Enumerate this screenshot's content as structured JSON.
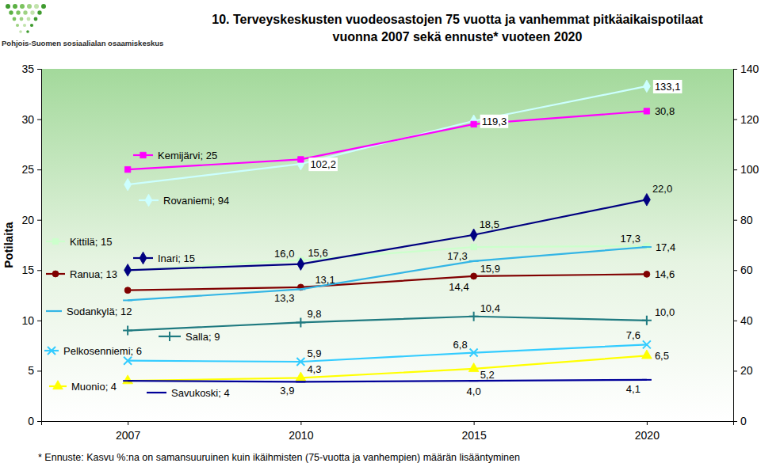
{
  "logo": {
    "text": "Pohjois-Suomen sosiaalialan osaamiskeskus"
  },
  "chart_data": {
    "type": "line",
    "title": "10. Terveyskeskusten vuodeosastojen 75 vuotta ja vanhemmat pitkäaikaispotilaat",
    "subtitle": "vuonna 2007 sekä ennuste* vuoteen 2020",
    "note": "* Ennuste: Kasvu %:na on samansuuruinen kuin ikäihmisten (75-vuotta ja vanhempien) määrän lisääntyminen",
    "ylabel": "Potilaita",
    "categories": [
      "2007",
      "2010",
      "2015",
      "2020"
    ],
    "ylim": [
      0,
      35
    ],
    "yticks": [
      0,
      5,
      10,
      15,
      20,
      25,
      30,
      35
    ],
    "y2lim": [
      0,
      140
    ],
    "y2ticks": [
      0,
      20,
      40,
      60,
      80,
      100,
      120,
      140
    ],
    "grid": false,
    "data_labels": true,
    "series": [
      {
        "name": "Rovaniemi",
        "color": "#ccffff",
        "marker": "diamond",
        "axis": "y2",
        "values": [
          94,
          102.2,
          119.3,
          133.1
        ],
        "value_labels": [
          "; 94",
          "102,2",
          "119,3",
          "133,1"
        ]
      },
      {
        "name": "Kemijärvi",
        "color": "#ff00ff",
        "marker": "square",
        "values": [
          25,
          26,
          29.5,
          30.8
        ],
        "value_labels": [
          "; 25",
          null,
          null,
          "30,8"
        ]
      },
      {
        "name": "Kittilä",
        "color": "#ccffcc",
        "marker": "square",
        "values": [
          15,
          16.0,
          17.3,
          17.4
        ],
        "value_labels": [
          "; 15",
          "16,0",
          "17,3",
          "17,4"
        ]
      },
      {
        "name": "Inari",
        "color": "#000080",
        "marker": "diamond",
        "values": [
          15,
          15.6,
          18.5,
          22.0
        ],
        "value_labels": [
          "; 15",
          "15,6",
          "18,5",
          "22,0"
        ]
      },
      {
        "name": "Ranua",
        "color": "#800000",
        "marker": "circle",
        "values": [
          13,
          13.3,
          14.4,
          14.6
        ],
        "value_labels": [
          "; 13",
          "13,3",
          "14,4",
          "14,6"
        ]
      },
      {
        "name": "Sodankylä",
        "color": "#33b5e5",
        "marker": "dash",
        "values": [
          12,
          13.1,
          15.9,
          17.3
        ],
        "value_labels": [
          "; 12",
          "13,1",
          "15,9",
          "17,3"
        ]
      },
      {
        "name": "Salla",
        "color": "#1f7a80",
        "marker": "plus",
        "values": [
          9,
          9.8,
          10.4,
          10.0
        ],
        "value_labels": [
          "; 9",
          "9,8",
          "10,4",
          "10,0"
        ]
      },
      {
        "name": "Pelkosenniemi",
        "color": "#33ccff",
        "marker": "x",
        "values": [
          6,
          5.9,
          6.8,
          7.6
        ],
        "value_labels": [
          "; 6",
          "5,9",
          "6,8",
          "7,6"
        ]
      },
      {
        "name": "Muonio",
        "color": "#ffff00",
        "marker": "triangle",
        "values": [
          4,
          4.3,
          5.2,
          6.5
        ],
        "value_labels": [
          "; 4",
          "4,3",
          "5,2",
          "6,5"
        ]
      },
      {
        "name": "Savukoski",
        "color": "#000099",
        "marker": "dash",
        "values": [
          4,
          3.9,
          4.0,
          4.1
        ],
        "value_labels": [
          "; 4",
          "3,9",
          "4,0",
          "4,1"
        ]
      }
    ]
  }
}
